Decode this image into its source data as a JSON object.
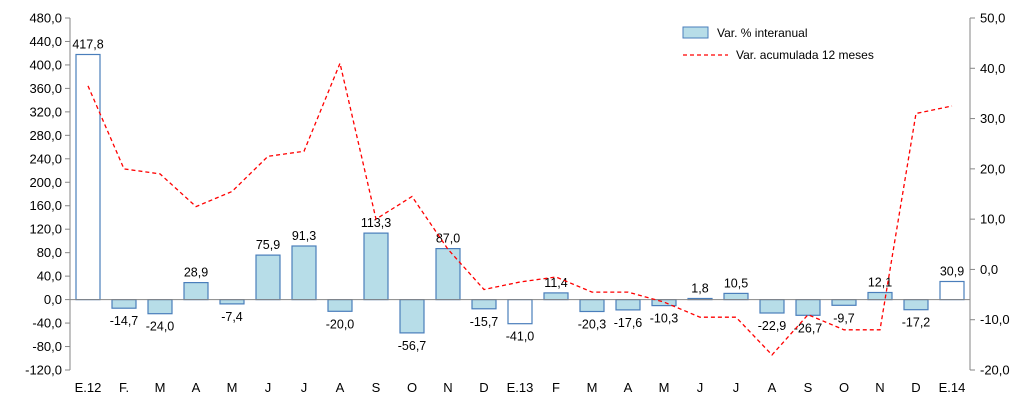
{
  "chart_data": {
    "type": "bar",
    "categories": [
      "E.12",
      "F.",
      "M",
      "A",
      "M",
      "J",
      "J",
      "A",
      "S",
      "O",
      "N",
      "D",
      "E.13",
      "F",
      "M",
      "A",
      "M",
      "J",
      "J",
      "A",
      "S",
      "O",
      "N",
      "D",
      "E.14"
    ],
    "series": [
      {
        "name": "Var. % interanual",
        "type": "bar",
        "axis": "left",
        "values": [
          417.8,
          -14.7,
          -24.0,
          28.9,
          -7.4,
          75.9,
          91.3,
          -20.0,
          113.3,
          -56.7,
          87.0,
          -15.7,
          -41.0,
          11.4,
          -20.3,
          -17.6,
          -10.3,
          1.8,
          10.5,
          -22.9,
          -26.7,
          -9.7,
          12.1,
          -17.2,
          30.9
        ],
        "labels": [
          "417,8",
          "-14,7",
          "-24,0",
          "28,9",
          "-7,4",
          "75,9",
          "91,3",
          "-20,0",
          "113,3",
          "-56,7",
          "87,0",
          "-15,7",
          "-41,0",
          "11,4",
          "-20,3",
          "-17,6",
          "-10,3",
          "1,8",
          "10,5",
          "-22,9",
          "-26,7",
          "-9,7",
          "12,1",
          "-17,2",
          "30,9"
        ],
        "highlight_indices": [
          0,
          12,
          24
        ],
        "fill": "#b7dde8",
        "highlight_fill": "#ffffff",
        "stroke": "#4a7ebb"
      },
      {
        "name": "Var. acumulada 12 meses",
        "type": "line",
        "axis": "right",
        "values": [
          36.5,
          20.0,
          19.0,
          12.5,
          15.5,
          22.5,
          23.5,
          41.0,
          10.0,
          14.5,
          4.0,
          -4.0,
          -2.5,
          -1.5,
          -4.5,
          -4.5,
          -6.5,
          -9.5,
          -9.5,
          -17.0,
          -9.0,
          -12.0,
          -12.0,
          31.0,
          32.5
        ],
        "color": "#ff0000",
        "dash": "4,3"
      }
    ],
    "yleft": {
      "min": -120,
      "max": 480,
      "step": 40,
      "ticks": [
        "-120,0",
        "-80,0",
        "-40,0",
        "0,0",
        "40,0",
        "80,0",
        "120,0",
        "160,0",
        "200,0",
        "240,0",
        "280,0",
        "320,0",
        "360,0",
        "400,0",
        "440,0",
        "480,0"
      ]
    },
    "yright": {
      "min": -20,
      "max": 50,
      "step": 10,
      "ticks": [
        "-20,0",
        "-10,0",
        "0,0",
        "10,0",
        "20,0",
        "30,0",
        "40,0",
        "50,0"
      ]
    },
    "legend": {
      "position": "top-right"
    },
    "grid": false
  }
}
